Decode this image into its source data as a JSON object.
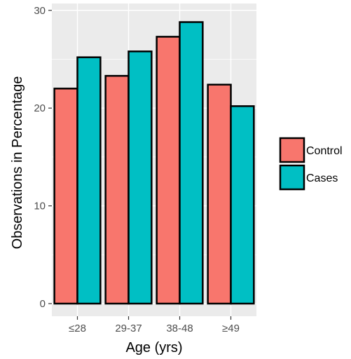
{
  "chart_data": {
    "type": "bar",
    "categories": [
      "≤28",
      "29-37",
      "38-48",
      "≥49"
    ],
    "series": [
      {
        "name": "Control",
        "values": [
          22.0,
          23.3,
          27.3,
          22.4
        ],
        "color": "#f8766d"
      },
      {
        "name": "Cases",
        "values": [
          25.2,
          25.8,
          28.8,
          20.2
        ],
        "color": "#00bfc4"
      }
    ],
    "xlabel": "Age (yrs)",
    "ylabel": "Observations in Percentage",
    "ylim": [
      0,
      30.7
    ],
    "yticks": [
      0,
      10,
      20,
      30
    ],
    "grid": true,
    "legend_position": "right",
    "panel_color": "#ebebeb",
    "bar_outline_color": "#000000"
  }
}
